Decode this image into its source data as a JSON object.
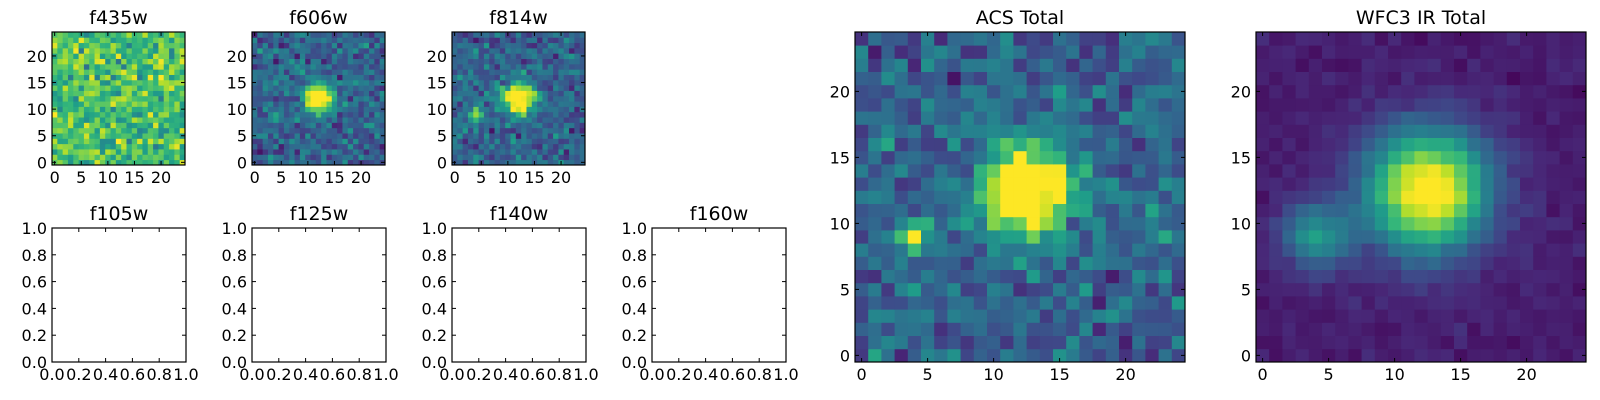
{
  "chart_data": [
    {
      "type": "heatmap",
      "title": "f435w",
      "colormap": "viridis",
      "xlim": [
        -0.5,
        24.5
      ],
      "ylim": [
        -0.5,
        24.5
      ],
      "xticks": [
        "0",
        "5",
        "10",
        "15",
        "20"
      ],
      "yticks": [
        "0",
        "5",
        "10",
        "15",
        "20"
      ],
      "content": "noise",
      "sources": []
    },
    {
      "type": "heatmap",
      "title": "f606w",
      "colormap": "viridis",
      "xlim": [
        -0.5,
        24.5
      ],
      "ylim": [
        -0.5,
        24.5
      ],
      "xticks": [
        "0",
        "5",
        "10",
        "15",
        "20"
      ],
      "yticks": [
        "0",
        "5",
        "10",
        "15",
        "20"
      ],
      "content": "sources",
      "sources": [
        {
          "x": 12,
          "y": 12,
          "peak": 1.0,
          "sigma": 1.8
        },
        {
          "x": 4,
          "y": 9,
          "peak": 0.35,
          "sigma": 0.8
        }
      ]
    },
    {
      "type": "heatmap",
      "title": "f814w",
      "colormap": "viridis",
      "xlim": [
        -0.5,
        24.5
      ],
      "ylim": [
        -0.5,
        24.5
      ],
      "xticks": [
        "0",
        "5",
        "10",
        "15",
        "20"
      ],
      "yticks": [
        "0",
        "5",
        "10",
        "15",
        "20"
      ],
      "content": "sources",
      "sources": [
        {
          "x": 12,
          "y": 12,
          "peak": 1.0,
          "sigma": 2.0
        },
        {
          "x": 4,
          "y": 9,
          "peak": 0.6,
          "sigma": 0.9
        }
      ]
    },
    {
      "type": "empty",
      "title": "f105w",
      "xlim": [
        0,
        1
      ],
      "ylim": [
        0,
        1
      ],
      "xticks": [
        "0.0",
        "0.2",
        "0.4",
        "0.6",
        "0.8",
        "1.0"
      ],
      "yticks": [
        "0.0",
        "0.2",
        "0.4",
        "0.6",
        "0.8",
        "1.0"
      ]
    },
    {
      "type": "empty",
      "title": "f125w",
      "xlim": [
        0,
        1
      ],
      "ylim": [
        0,
        1
      ],
      "xticks": [
        "0.0",
        "0.2",
        "0.4",
        "0.6",
        "0.8",
        "1.0"
      ],
      "yticks": [
        "0.0",
        "0.2",
        "0.4",
        "0.6",
        "0.8",
        "1.0"
      ]
    },
    {
      "type": "empty",
      "title": "f140w",
      "xlim": [
        0,
        1
      ],
      "ylim": [
        0,
        1
      ],
      "xticks": [
        "0.0",
        "0.2",
        "0.4",
        "0.6",
        "0.8",
        "1.0"
      ],
      "yticks": [
        "0.0",
        "0.2",
        "0.4",
        "0.6",
        "0.8",
        "1.0"
      ]
    },
    {
      "type": "empty",
      "title": "f160w",
      "xlim": [
        0,
        1
      ],
      "ylim": [
        0,
        1
      ],
      "xticks": [
        "0.0",
        "0.2",
        "0.4",
        "0.6",
        "0.8",
        "1.0"
      ],
      "yticks": [
        "0.0",
        "0.2",
        "0.4",
        "0.6",
        "0.8",
        "1.0"
      ]
    },
    {
      "type": "heatmap",
      "title": "ACS Total",
      "colormap": "viridis",
      "xlim": [
        -0.5,
        24.5
      ],
      "ylim": [
        -0.5,
        24.5
      ],
      "xticks": [
        "0",
        "5",
        "10",
        "15",
        "20"
      ],
      "yticks": [
        "0",
        "5",
        "10",
        "15",
        "20"
      ],
      "content": "sources",
      "sources": [
        {
          "x": 12.5,
          "y": 12.5,
          "peak": 1.0,
          "sigma": 2.3
        },
        {
          "x": 4,
          "y": 9,
          "peak": 0.75,
          "sigma": 0.7
        }
      ]
    },
    {
      "type": "heatmap",
      "title": "WFC3 IR Total",
      "colormap": "viridis",
      "xlim": [
        -0.5,
        24.5
      ],
      "ylim": [
        -0.5,
        24.5
      ],
      "xticks": [
        "0",
        "5",
        "10",
        "15",
        "20"
      ],
      "yticks": [
        "0",
        "5",
        "10",
        "15",
        "20"
      ],
      "content": "sources",
      "sources": [
        {
          "x": 12.5,
          "y": 12.5,
          "peak": 1.0,
          "sigma": 3.2
        },
        {
          "x": 4,
          "y": 9,
          "peak": 0.45,
          "sigma": 1.8
        }
      ]
    }
  ]
}
